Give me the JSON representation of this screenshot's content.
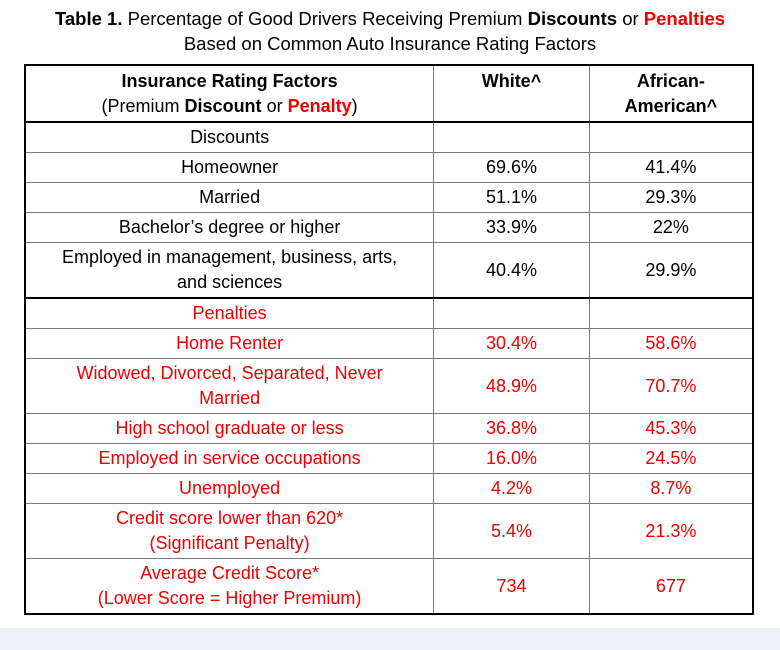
{
  "caption": {
    "label": "Table 1.",
    "line1_text": "Percentage of Good Drivers Receiving Premium",
    "discounts_word": "Discounts",
    "or_word": "or",
    "penalties_word": "Penalties",
    "line2": "Based on Common Auto Insurance Rating Factors"
  },
  "header": {
    "factor_line1": "Insurance Rating Factors",
    "factor_line2_open": "(Premium",
    "factor_line2_discount": "Discount",
    "factor_line2_or": "or",
    "factor_line2_penalty": "Penalty",
    "factor_line2_close": ")",
    "white": "White^",
    "aa_line1": "African-",
    "aa_line2": "American^"
  },
  "discounts": {
    "title": "Discounts",
    "rows": [
      {
        "factor": "Homeowner",
        "white": "69.6%",
        "aa": "41.4%"
      },
      {
        "factor": "Married",
        "white": "51.1%",
        "aa": "29.3%"
      },
      {
        "factor": "Bachelor’s degree or higher",
        "white": "33.9%",
        "aa": "22%"
      },
      {
        "factor_line1": "Employed in management, business, arts,",
        "factor_line2": "and sciences",
        "white": "40.4%",
        "aa": "29.9%"
      }
    ]
  },
  "penalties": {
    "title": "Penalties",
    "rows": [
      {
        "factor": "Home Renter",
        "white": "30.4%",
        "aa": "58.6%"
      },
      {
        "factor_line1": "Widowed, Divorced, Separated, Never",
        "factor_line2": "Married",
        "white": "48.9%",
        "aa": "70.7%"
      },
      {
        "factor": "High school graduate or less",
        "white": "36.8%",
        "aa": "45.3%"
      },
      {
        "factor": "Employed in service occupations",
        "white": "16.0%",
        "aa": "24.5%"
      },
      {
        "factor": "Unemployed",
        "white": "4.2%",
        "aa": "8.7%"
      },
      {
        "factor_line1": "Credit score lower than 620*",
        "factor_line2": "(Significant Penalty)",
        "white": "5.4%",
        "aa": "21.3%"
      },
      {
        "factor_line1": "Average Credit Score*",
        "factor_line2": "(Lower Score = Higher Premium)",
        "white": "734",
        "aa": "677"
      }
    ]
  },
  "colors": {
    "penalty_red": "#ee0000",
    "background_band": "#eef1f7"
  }
}
